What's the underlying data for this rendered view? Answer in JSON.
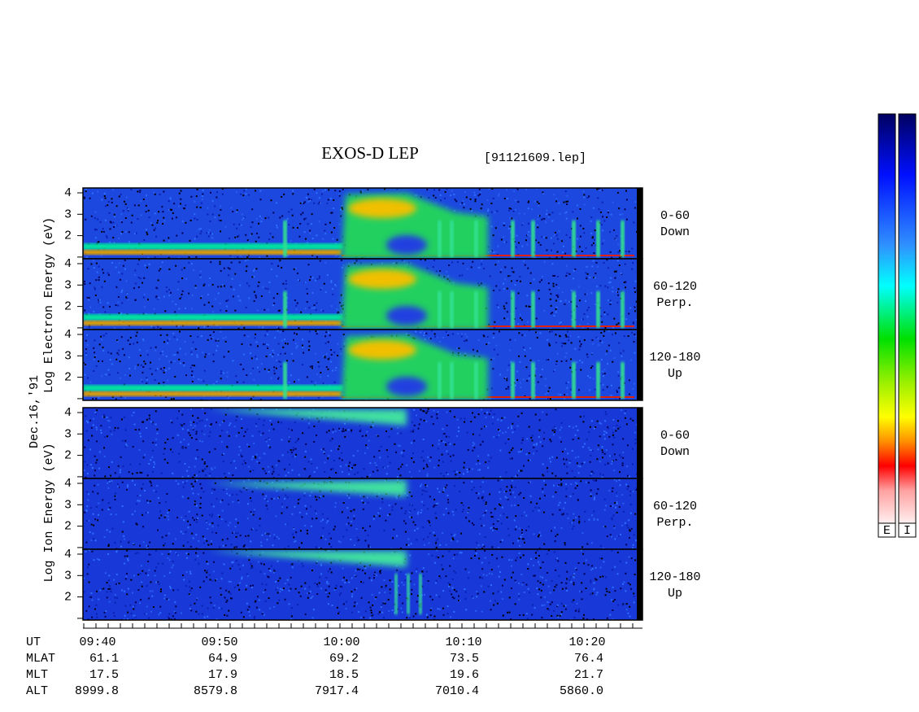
{
  "title": "EXOS-D LEP",
  "file": "[91121609.lep]",
  "date": "Dec.16,'91",
  "electron_label": "Log Electron Energy (eV)",
  "ion_label": "Log Ion Energy (eV)",
  "panels": [
    {
      "angle": "0-60",
      "direction": "Down",
      "yticks": [
        2,
        3,
        4
      ]
    },
    {
      "angle": "60-120",
      "direction": "Perp.",
      "yticks": [
        2,
        3,
        4
      ]
    },
    {
      "angle": "120-180",
      "direction": "Up",
      "yticks": [
        2,
        3,
        4
      ]
    },
    {
      "angle": "0-60",
      "direction": "Down",
      "yticks": [
        2,
        3,
        4
      ]
    },
    {
      "angle": "60-120",
      "direction": "Perp.",
      "yticks": [
        2,
        3,
        4
      ]
    },
    {
      "angle": "120-180",
      "direction": "Up",
      "yticks": [
        2,
        3,
        4
      ]
    }
  ],
  "rows": [
    {
      "label": "UT",
      "values": [
        "09:40",
        "09:50",
        "10:00",
        "10:10",
        "10:20"
      ]
    },
    {
      "label": "MLAT",
      "values": [
        "61.1",
        "64.9",
        "69.2",
        "73.5",
        "76.4"
      ]
    },
    {
      "label": "MLT",
      "values": [
        "17.5",
        "17.9",
        "18.5",
        "19.6",
        "21.7"
      ]
    },
    {
      "label": "ALT",
      "values": [
        "8999.8",
        "8579.8",
        "7917.4",
        "7010.4",
        "5860.0"
      ]
    }
  ],
  "colorbars": [
    "E",
    "I"
  ]
}
